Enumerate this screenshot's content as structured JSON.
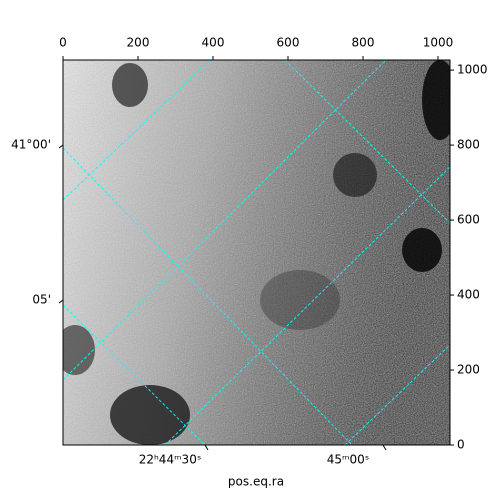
{
  "chart_data": {
    "type": "image",
    "xlabel": "pos.eq.ra",
    "xlim": [
      0,
      1032
    ],
    "xticks": [
      0,
      200,
      400,
      600,
      800,
      1000
    ],
    "ylim": [
      0,
      1027
    ],
    "yticks": [
      0,
      200,
      400,
      600,
      800,
      1000
    ],
    "ra_ticks": [
      "22ʰ44ᵐ30ˢ",
      "45ᵐ00ˢ"
    ],
    "dec_ticks": [
      "41°00'",
      "05'"
    ],
    "grid_color": "#00ffff"
  }
}
